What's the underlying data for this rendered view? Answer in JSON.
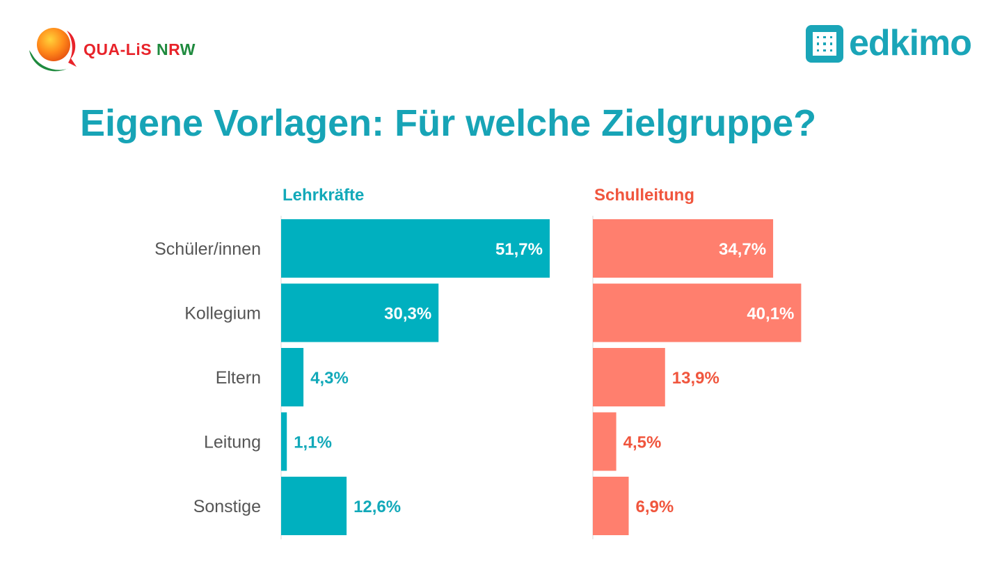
{
  "logos": {
    "qualis": {
      "parts": [
        "QUA-LiS ",
        "N",
        "R",
        "W"
      ],
      "colors": [
        "#e8232a",
        "#1f8a3e",
        "#e8232a",
        "#1f8a3e"
      ]
    },
    "edkimo": {
      "text": "edkimo",
      "color": "#1aa5b8"
    }
  },
  "title": "Eigene Vorlagen: Für welche Zielgruppe?",
  "colors": {
    "title": "#17a4b6",
    "teal": "#00b0bf",
    "teal_label": "#12a9b9",
    "coral": "#ff7f6e",
    "coral_label": "#f0553d",
    "category_text": "#555555",
    "axis": "#d9d9d9"
  },
  "chart_data": [
    {
      "type": "bar",
      "orientation": "horizontal",
      "title": "Lehrkräfte",
      "categories": [
        "Schüler/innen",
        "Kollegium",
        "Eltern",
        "Leitung",
        "Sonstige"
      ],
      "values": [
        51.7,
        30.3,
        4.3,
        1.1,
        12.6
      ],
      "labels": [
        "51,7%",
        "30,3%",
        "4,3%",
        "1,1%",
        "12,6%"
      ],
      "unit": "%",
      "xlim": [
        0,
        55
      ]
    },
    {
      "type": "bar",
      "orientation": "horizontal",
      "title": "Schulleitung",
      "categories": [
        "Schüler/innen",
        "Kollegium",
        "Eltern",
        "Leitung",
        "Sonstige"
      ],
      "values": [
        34.7,
        40.1,
        13.9,
        4.5,
        6.9
      ],
      "labels": [
        "34,7%",
        "40,1%",
        "13,9%",
        "4,5%",
        "6,9%"
      ],
      "unit": "%",
      "xlim": [
        0,
        55
      ]
    }
  ]
}
